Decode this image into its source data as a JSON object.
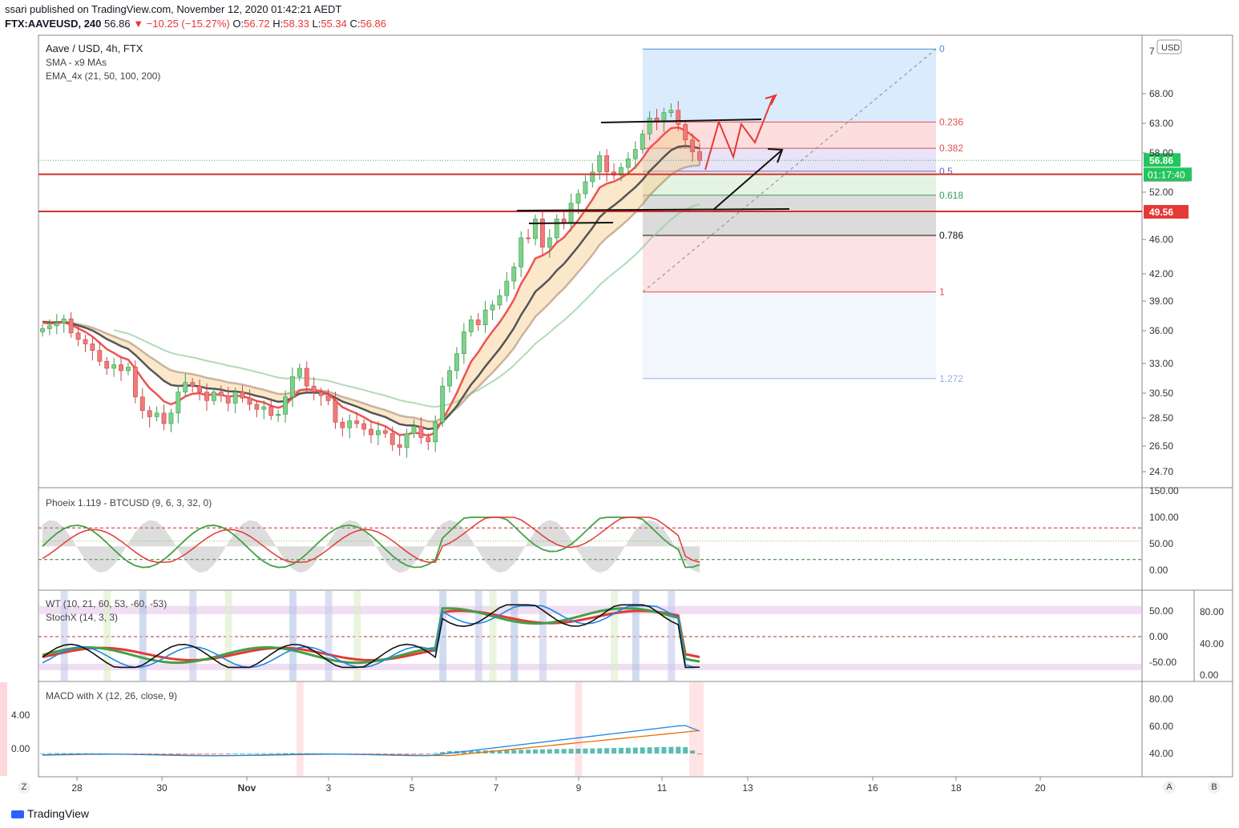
{
  "header": {
    "published": "ssari published on TradingView.com, November 12, 2020 01:42:21 AEDT",
    "symbol_line": "FTX:AAVEUSD, 240",
    "last": "56.86",
    "change": "▼ −10.25 (−15.27%)",
    "o_label": "O:",
    "o": "56.72",
    "h_label": "H:",
    "h": "58.33",
    "l_label": "L:",
    "l": "55.34",
    "c_label": "C:",
    "c": "56.86"
  },
  "legend": {
    "title": "Aave / USD, 4h, FTX",
    "sma": "SMA - x9 MAs",
    "ema": "EMA_4x (21, 50, 100, 200)"
  },
  "price_axis": {
    "currency": "USD",
    "ticks": [
      "68.00",
      "63.00",
      "58.00",
      "52.00",
      "46.00",
      "42.00",
      "39.00",
      "36.00",
      "33.00",
      "30.50",
      "28.50",
      "26.50",
      "24.70"
    ],
    "top_partial": "7",
    "last_price_tag": "56.86",
    "countdown_tag": "01:17:40",
    "level_tag_1": "54.74",
    "level_tag_2": "49.56"
  },
  "fib_labels": [
    "0",
    "0.236",
    "0.382",
    "0.5",
    "0.618",
    "0.786",
    "1",
    "1.272"
  ],
  "time_axis": [
    "28",
    "30",
    "Nov",
    "3",
    "5",
    "7",
    "9",
    "11",
    "13",
    "16",
    "18",
    "20"
  ],
  "panes": {
    "phoeix": {
      "label": "Phoeix 1.119 - BTCUSD (9, 6, 3, 32, 0)",
      "ticks": [
        "150.00",
        "100.00",
        "50.00",
        "0.00"
      ]
    },
    "wt": {
      "label": "WT (10, 21, 60, 53, -60, -53)",
      "label2": "StochX (14, 3, 3)",
      "ticks": [
        "50.00",
        "0.00",
        "-50.00"
      ],
      "ticks2": [
        "80.00",
        "40.00",
        "0.00"
      ]
    },
    "macd": {
      "label": "MACD with X (12, 26, close, 9)",
      "left_ticks": [
        "4.00",
        "0.00"
      ],
      "ticks": [
        "80.00",
        "60.00",
        "40.00"
      ]
    }
  },
  "footer": {
    "brand": "TradingView"
  },
  "corner": {
    "z": "Z",
    "a": "A",
    "b": "B"
  },
  "colors": {
    "up": "#26a69a",
    "down": "#ef5350",
    "ema21": "#ef5350",
    "ema50": "#555555",
    "ema100": "#a08060",
    "ema200": "#8fcc9a"
  },
  "chart_data": {
    "type": "candlestick",
    "title": "Aave / USD, 4h, FTX",
    "ylim": [
      24.0,
      72.0
    ],
    "horizontal_levels": [
      54.74,
      49.56
    ],
    "fib_retracement": {
      "high": 70.4,
      "low": 40.0,
      "levels": [
        0,
        0.236,
        0.382,
        0.5,
        0.618,
        0.786,
        1,
        1.272
      ]
    },
    "closes": [
      36.2,
      36.5,
      36.8,
      37.2,
      35.8,
      35.2,
      34.8,
      34.2,
      33.2,
      32.6,
      32.9,
      32.4,
      32.7,
      30.2,
      29.1,
      28.6,
      28.9,
      28.1,
      28.9,
      30.6,
      31.4,
      31.1,
      30.6,
      29.9,
      30.6,
      30.3,
      29.7,
      30.6,
      30.1,
      29.6,
      29.2,
      29.4,
      28.7,
      28.8,
      30.2,
      31.9,
      32.6,
      31.1,
      30.6,
      30.3,
      29.9,
      28.2,
      27.8,
      28.3,
      28.1,
      27.7,
      27.3,
      27.6,
      27.4,
      26.6,
      26.4,
      27.4,
      27.9,
      27.1,
      26.8,
      28.2,
      31.1,
      32.4,
      33.9,
      35.9,
      37.1,
      36.6,
      38.1,
      38.6,
      39.6,
      41.2,
      42.8,
      46.2,
      46.1,
      48.6,
      45.1,
      46.2,
      48.6,
      48.1,
      50.6,
      51.8,
      53.6,
      55.1,
      57.6,
      55.1,
      54.6,
      55.8,
      57.1,
      58.6,
      61.2,
      63.9,
      63.2,
      64.8,
      65.2,
      62.8,
      60.2,
      58.2,
      56.86
    ]
  }
}
